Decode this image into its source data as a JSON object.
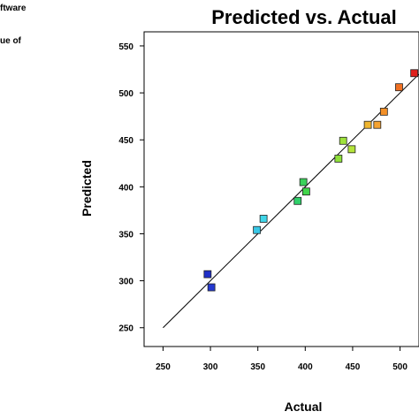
{
  "fragments": [
    "ftware",
    "ue of"
  ],
  "chart_data": {
    "type": "scatter",
    "title": "Predicted vs. Actual",
    "xlabel": "Actual",
    "ylabel": "Predicted",
    "xlim": [
      230,
      520
    ],
    "ylim": [
      230,
      565
    ],
    "xticks": [
      "250",
      "300",
      "350",
      "400",
      "450",
      "500"
    ],
    "yticks": [
      "250",
      "300",
      "350",
      "400",
      "450",
      "500",
      "550"
    ],
    "reference_line": {
      "x": [
        250,
        520
      ],
      "y": [
        250,
        520
      ],
      "color": "#000000"
    },
    "grid": false,
    "points": [
      {
        "x": 297,
        "y": 307,
        "color": "#1f2fc8"
      },
      {
        "x": 301,
        "y": 293,
        "color": "#2438d0"
      },
      {
        "x": 349,
        "y": 354,
        "color": "#39c7e6"
      },
      {
        "x": 356,
        "y": 366,
        "color": "#3fd5e8"
      },
      {
        "x": 392,
        "y": 385,
        "color": "#2fd06a"
      },
      {
        "x": 398,
        "y": 405,
        "color": "#3ad25a"
      },
      {
        "x": 401,
        "y": 395,
        "color": "#41d64a"
      },
      {
        "x": 435,
        "y": 430,
        "color": "#8fe03a"
      },
      {
        "x": 440,
        "y": 449,
        "color": "#9ee23c"
      },
      {
        "x": 449,
        "y": 440,
        "color": "#b4e43a"
      },
      {
        "x": 466,
        "y": 466,
        "color": "#f0b630"
      },
      {
        "x": 476,
        "y": 466,
        "color": "#f5a332"
      },
      {
        "x": 483,
        "y": 480,
        "color": "#f39028"
      },
      {
        "x": 499,
        "y": 506,
        "color": "#f07022"
      },
      {
        "x": 515,
        "y": 521,
        "color": "#e0201c"
      }
    ]
  }
}
